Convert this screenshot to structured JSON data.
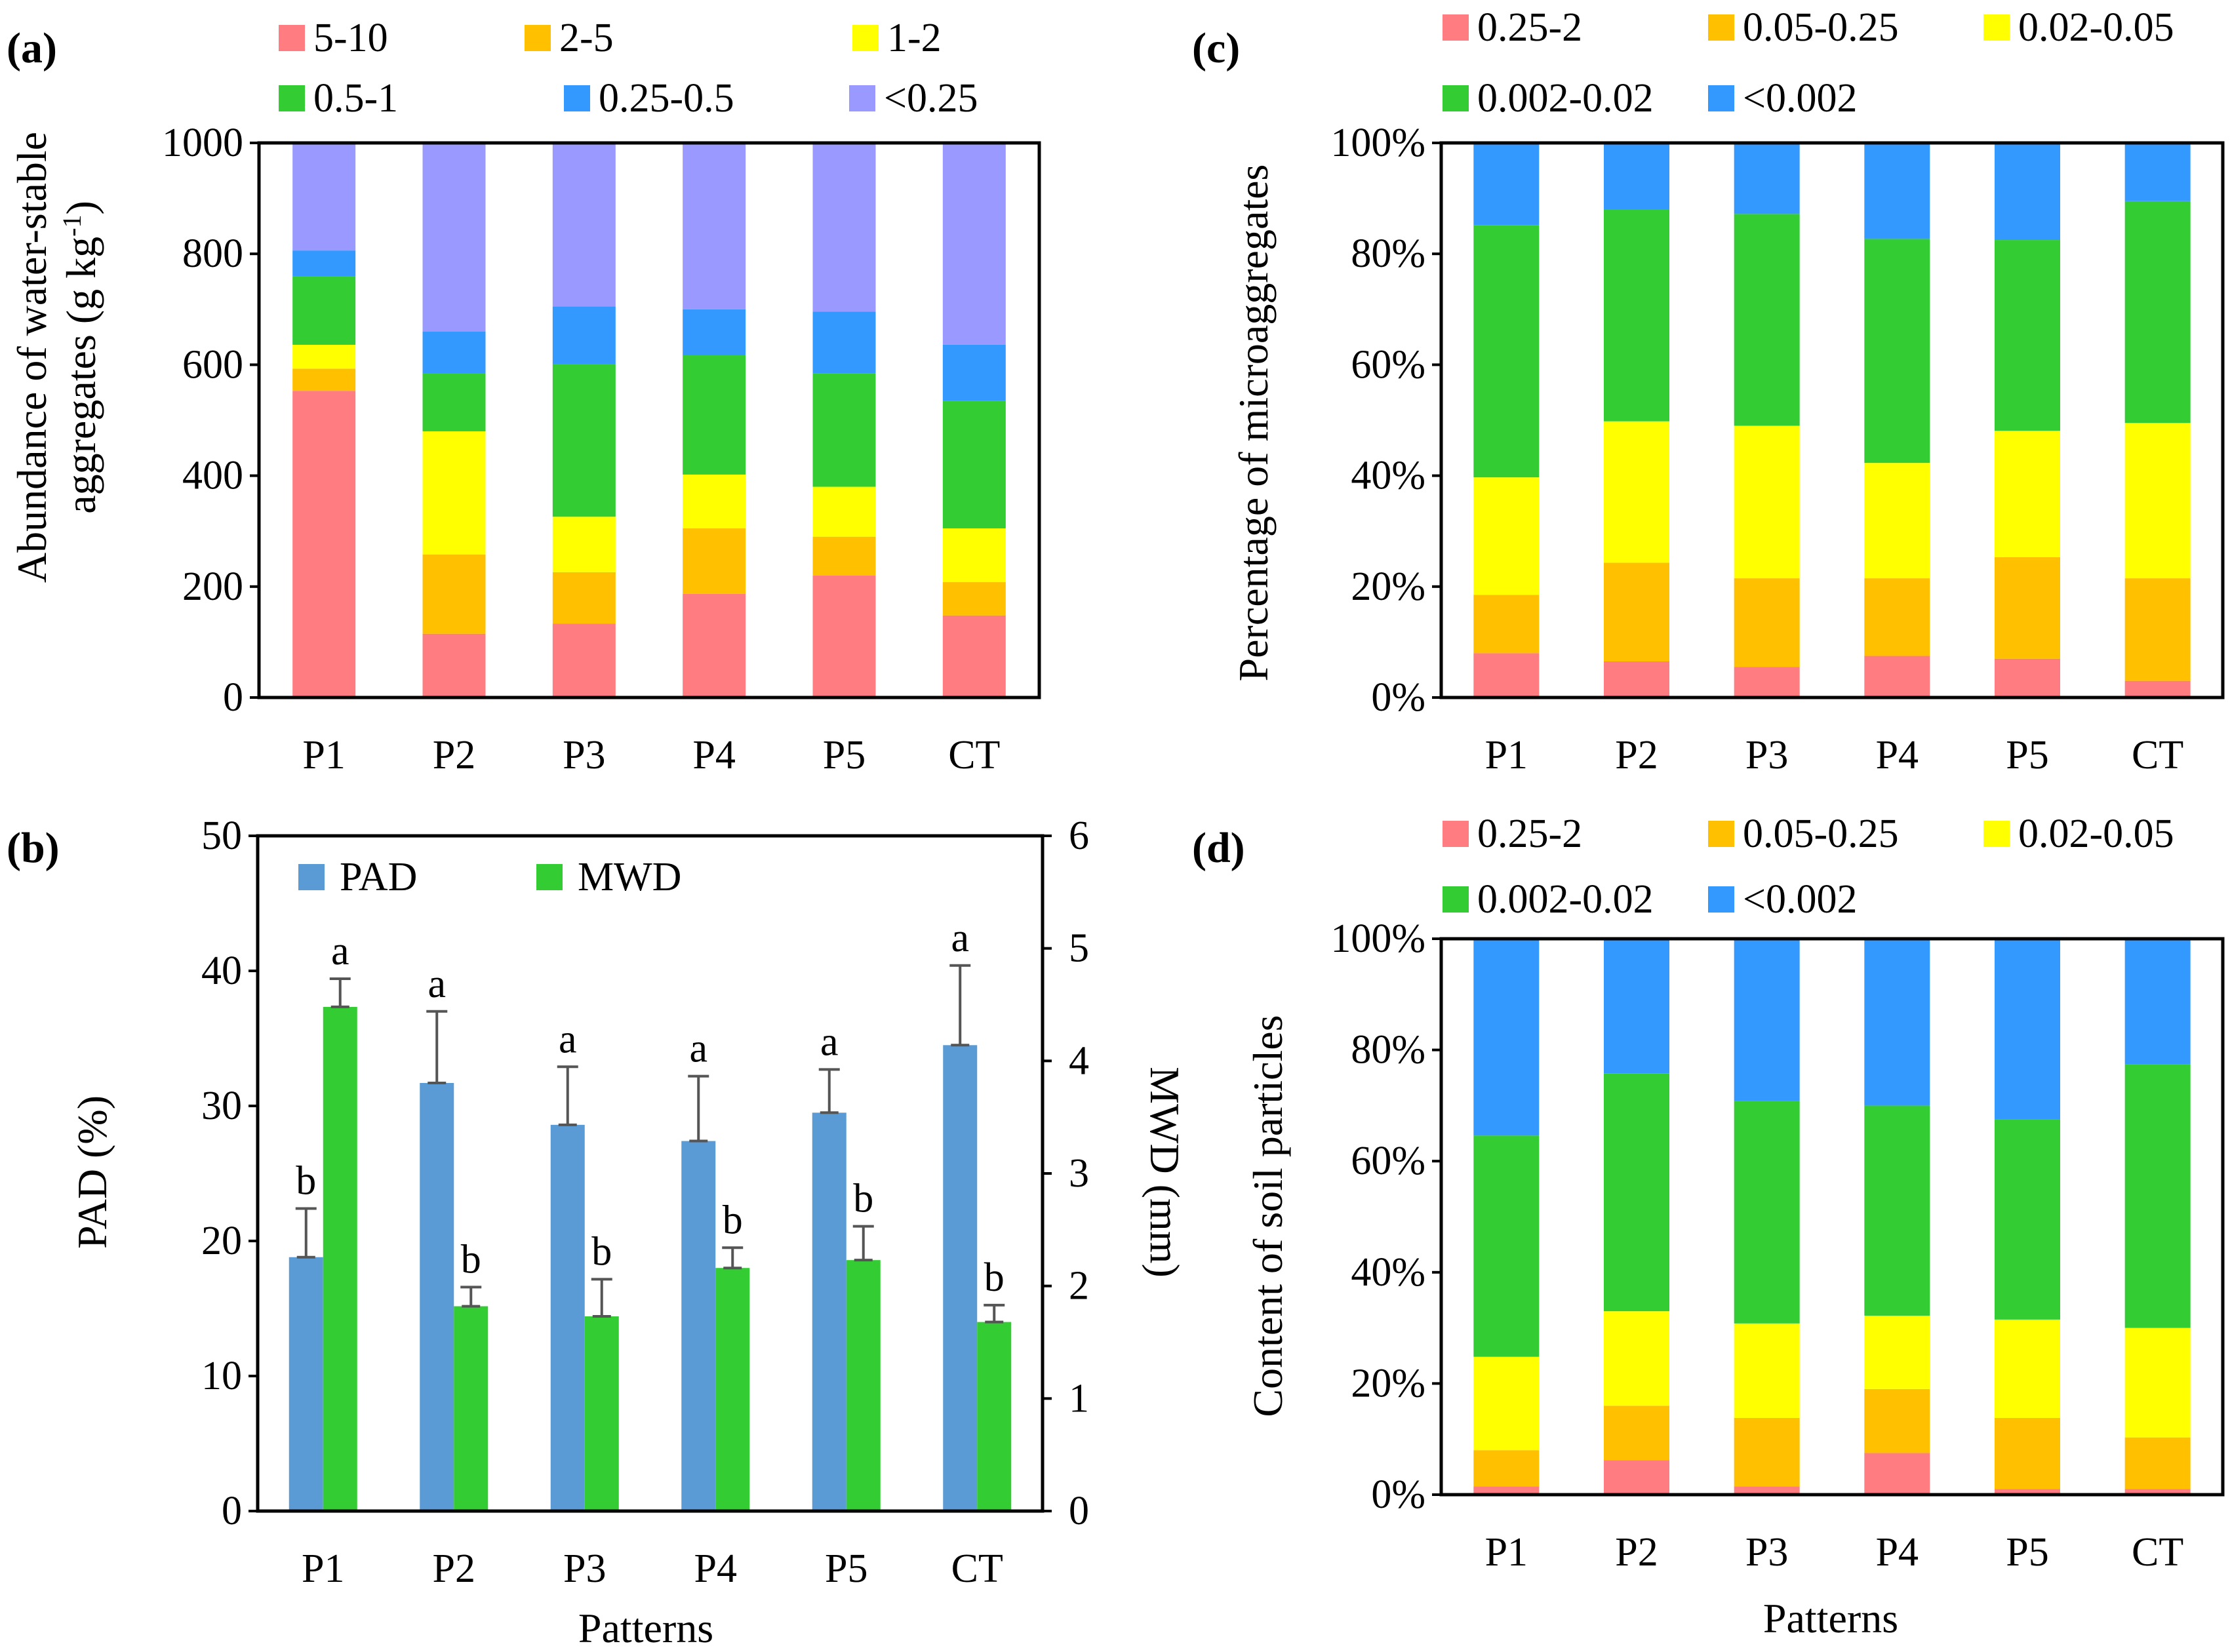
{
  "colors": {
    "c5_10": "#ff7c80",
    "c2_5": "#ffc000",
    "c1_2": "#ffff00",
    "c05_1": "#33cc33",
    "c025_05": "#3399ff",
    "clt025": "#9999ff",
    "pad": "#5b9bd5",
    "mwd": "#33cc33",
    "error": "#555555"
  },
  "chart_data": [
    {
      "id": "a",
      "panel_label": "(a)",
      "type": "bar",
      "stacked": true,
      "categories": [
        "P1",
        "P2",
        "P3",
        "P4",
        "P5",
        "CT"
      ],
      "ylabel_line1": "Abundance of water-stable",
      "ylabel_line2": "aggregates (g kg",
      "ylabel_sup": "-1",
      "ylabel_close": ")",
      "ylim": [
        0,
        1000
      ],
      "yticks": [
        "0",
        "200",
        "400",
        "600",
        "800",
        "1000"
      ],
      "series": [
        {
          "name": "5-10",
          "color": "#ff7c80",
          "values": [
            553,
            115,
            133,
            187,
            220,
            148
          ]
        },
        {
          "name": "2-5",
          "color": "#ffc000",
          "values": [
            40,
            143,
            93,
            118,
            70,
            60
          ]
        },
        {
          "name": "1-2",
          "color": "#ffff00",
          "values": [
            43,
            222,
            100,
            97,
            90,
            97
          ]
        },
        {
          "name": "0.5-1",
          "color": "#33cc33",
          "values": [
            124,
            104,
            275,
            215,
            205,
            230
          ]
        },
        {
          "name": "0.25-0.5",
          "color": "#3399ff",
          "values": [
            46,
            76,
            104,
            83,
            111,
            101
          ]
        },
        {
          "name": "<0.25",
          "color": "#9999ff",
          "values": [
            194,
            340,
            295,
            300,
            304,
            364
          ]
        }
      ]
    },
    {
      "id": "b",
      "panel_label": "(b)",
      "type": "bar",
      "categories": [
        "P1",
        "P2",
        "P3",
        "P4",
        "P5",
        "CT"
      ],
      "xlabel": "Patterns",
      "ylabel": "PAD (%)",
      "ylabel_right": "MWD (mm)",
      "ylim": [
        0,
        50
      ],
      "ylim_right": [
        0,
        6
      ],
      "yticks": [
        "0",
        "10",
        "20",
        "30",
        "40",
        "50"
      ],
      "yticks_right": [
        "0",
        "1",
        "2",
        "3",
        "4",
        "5",
        "6"
      ],
      "series": [
        {
          "name": "PAD",
          "color": "#5b9bd5",
          "axis": "left",
          "values": [
            18.8,
            31.7,
            28.6,
            27.4,
            29.5,
            34.5
          ],
          "errors": [
            3.6,
            5.3,
            4.3,
            4.8,
            3.2,
            5.9
          ],
          "letters": [
            "b",
            "a",
            "a",
            "a",
            "a",
            "a"
          ]
        },
        {
          "name": "MWD",
          "color": "#33cc33",
          "axis": "right",
          "values": [
            4.48,
            1.82,
            1.73,
            2.16,
            2.23,
            1.68
          ],
          "errors": [
            0.25,
            0.17,
            0.33,
            0.18,
            0.3,
            0.15
          ],
          "letters": [
            "a",
            "b",
            "b",
            "b",
            "b",
            "b"
          ]
        }
      ]
    },
    {
      "id": "c",
      "panel_label": "(c)",
      "type": "bar",
      "stacked": true,
      "categories": [
        "P1",
        "P2",
        "P3",
        "P4",
        "P5",
        "CT"
      ],
      "ylabel": "Percentage of  microaggregates",
      "ylim": [
        0,
        100
      ],
      "yticks": [
        "0%",
        "20%",
        "40%",
        "60%",
        "80%",
        "100%"
      ],
      "series": [
        {
          "name": "0.25-2",
          "color": "#ff7c80",
          "values": [
            8,
            6.5,
            5.5,
            7.5,
            7,
            3
          ]
        },
        {
          "name": "0.05-0.25",
          "color": "#ffc000",
          "values": [
            10.5,
            17.8,
            16,
            14,
            18.3,
            18.5
          ]
        },
        {
          "name": "0.02-0.05",
          "color": "#ffff00",
          "values": [
            21.2,
            25.5,
            27.5,
            20.8,
            22.8,
            28
          ]
        },
        {
          "name": "0.002-0.02",
          "color": "#33cc33",
          "values": [
            45.5,
            38.2,
            38.2,
            40.4,
            34.4,
            40
          ]
        },
        {
          "name": "<0.002",
          "color": "#3399ff",
          "values": [
            14.8,
            12,
            12.8,
            17.3,
            17.5,
            10.5
          ]
        }
      ]
    },
    {
      "id": "d",
      "panel_label": "(d)",
      "type": "bar",
      "stacked": true,
      "categories": [
        "P1",
        "P2",
        "P3",
        "P4",
        "P5",
        "CT"
      ],
      "xlabel": "Patterns",
      "ylabel": "Content of  soil particles",
      "ylim": [
        0,
        100
      ],
      "yticks": [
        "0%",
        "20%",
        "40%",
        "60%",
        "80%",
        "100%"
      ],
      "series": [
        {
          "name": "0.25-2",
          "color": "#ff7c80",
          "values": [
            1.5,
            6.2,
            1.5,
            7.5,
            1,
            1
          ]
        },
        {
          "name": "0.05-0.25",
          "color": "#ffc000",
          "values": [
            6.5,
            9.8,
            12.3,
            11.5,
            12.8,
            9.3
          ]
        },
        {
          "name": "0.02-0.05",
          "color": "#ffff00",
          "values": [
            16.8,
            17,
            17,
            13.2,
            17.7,
            19.7
          ]
        },
        {
          "name": "0.002-0.02",
          "color": "#33cc33",
          "values": [
            39.8,
            42.8,
            40,
            37.8,
            36,
            47.4
          ]
        },
        {
          "name": "<0.002",
          "color": "#3399ff",
          "values": [
            35.4,
            24.2,
            29.2,
            30,
            32.5,
            22.6
          ]
        }
      ]
    }
  ]
}
